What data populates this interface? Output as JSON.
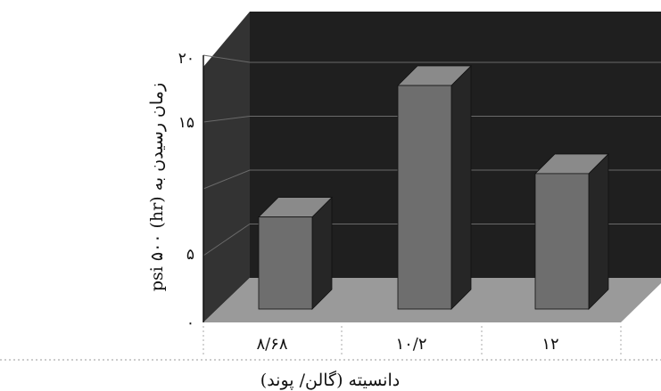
{
  "chart_data": {
    "type": "bar",
    "style": "3d",
    "categories": [
      "۸/۶۸",
      "۱۰/۲",
      "۱۲"
    ],
    "values": [
      7,
      17,
      10.3
    ],
    "yticks": [
      "۰",
      "۵",
      "۱۵",
      "۲۰"
    ],
    "ylim": [
      0,
      20
    ],
    "xlabel": "دانسیته (گالن/ پوند)",
    "ylabel": "زمان رسیدن به psi ۵۰۰ (hr)",
    "grid": true,
    "colors": {
      "back_wall": "#1f1f1f",
      "side_wall": "#333333",
      "floor": "#9a9a9a",
      "gridline": "#6a6a6a",
      "bar_front": "#6e6e6e",
      "bar_top": "#8a8a8a",
      "bar_side": "#262626"
    }
  }
}
